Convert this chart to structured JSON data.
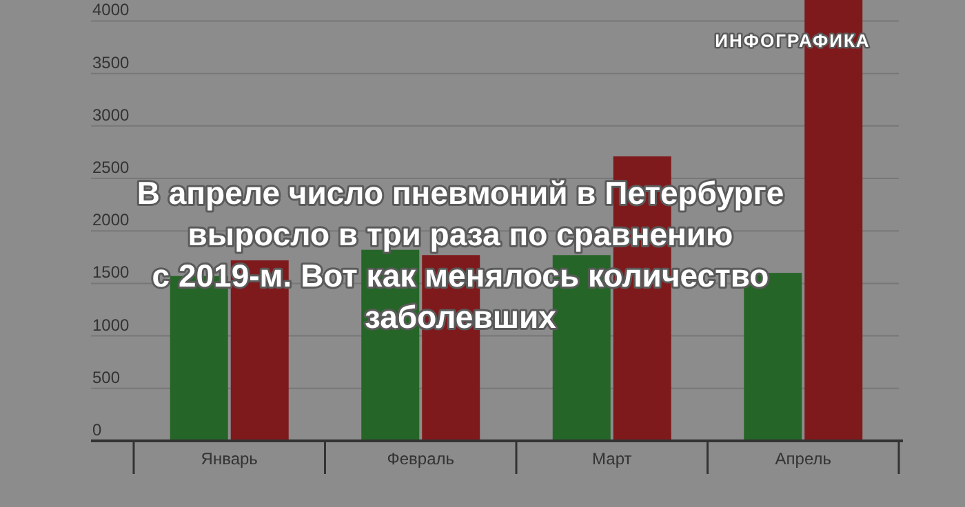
{
  "chart_data": {
    "type": "bar",
    "title": "В апреле число пневмоний в Петербурге\nвыросло в три раза по сравнению\nс 2019-м. Вот как менялось количество\nзаболевших",
    "annotations": [
      "ИНФОГРАФИКА"
    ],
    "categories": [
      "Январь",
      "Февраль",
      "Март",
      "Апрель"
    ],
    "series": [
      {
        "color": "#266528",
        "values": [
          1570,
          1820,
          1770,
          1600
        ]
      },
      {
        "color": "#7f1a1c",
        "values": [
          1720,
          1770,
          2710,
          4200
        ]
      }
    ],
    "ylim": [
      0,
      4200
    ],
    "yticks": [
      0,
      500,
      1000,
      1500,
      2000,
      2500,
      3000,
      3500,
      4000
    ],
    "grid": "y",
    "legend": false
  }
}
